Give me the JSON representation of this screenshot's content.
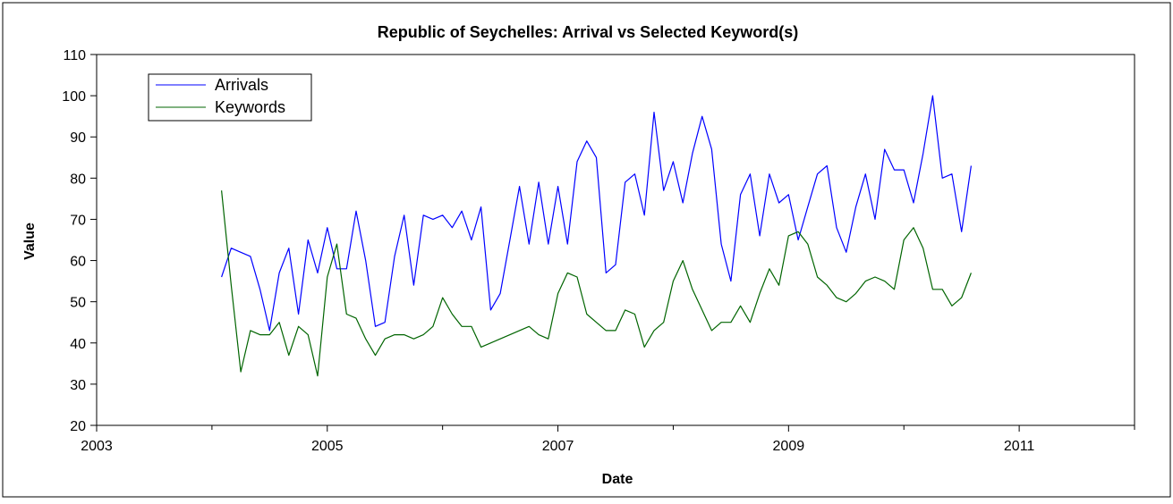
{
  "chart_data": {
    "type": "line",
    "title": "Republic of Seychelles: Arrival vs Selected Keyword(s)",
    "xlabel": "Date",
    "ylabel": "Value",
    "xlim": [
      "2003-01-01",
      "2012-01-01"
    ],
    "ylim": [
      20,
      110
    ],
    "x_ticks": [
      {
        "date": "2003-01-01",
        "label": "2003"
      },
      {
        "date": "2005-01-01",
        "label": "2005"
      },
      {
        "date": "2007-01-01",
        "label": "2007"
      },
      {
        "date": "2009-01-01",
        "label": "2009"
      },
      {
        "date": "2011-01-01",
        "label": "2011"
      }
    ],
    "x_minor_ticks": [
      "2004-01-01",
      "2006-01-01",
      "2008-01-01",
      "2010-01-01",
      "2012-01-01"
    ],
    "y_ticks": [
      20,
      30,
      40,
      50,
      60,
      70,
      80,
      90,
      100,
      110
    ],
    "grid": false,
    "legend_position": "top-left",
    "colors": {
      "arrivals": "#0000ff",
      "keywords": "#006400"
    },
    "x": [
      "2004-02",
      "2004-03",
      "2004-04",
      "2004-05",
      "2004-06",
      "2004-07",
      "2004-08",
      "2004-09",
      "2004-10",
      "2004-11",
      "2004-12",
      "2005-01",
      "2005-02",
      "2005-03",
      "2005-04",
      "2005-05",
      "2005-06",
      "2005-07",
      "2005-08",
      "2005-09",
      "2005-10",
      "2005-11",
      "2005-12",
      "2006-01",
      "2006-02",
      "2006-03",
      "2006-04",
      "2006-05",
      "2006-06",
      "2006-07",
      "2006-08",
      "2006-09",
      "2006-10",
      "2006-11",
      "2006-12",
      "2007-01",
      "2007-02",
      "2007-03",
      "2007-04",
      "2007-05",
      "2007-06",
      "2007-07",
      "2007-08",
      "2007-09",
      "2007-10",
      "2007-11",
      "2007-12",
      "2008-01",
      "2008-02",
      "2008-03",
      "2008-04",
      "2008-05",
      "2008-06",
      "2008-07",
      "2008-08",
      "2008-09",
      "2008-10",
      "2008-11",
      "2008-12",
      "2009-01",
      "2009-02",
      "2009-03",
      "2009-04",
      "2009-05",
      "2009-06",
      "2009-07",
      "2009-08",
      "2009-09",
      "2009-10",
      "2009-11",
      "2009-12",
      "2010-01",
      "2010-02",
      "2010-03",
      "2010-04",
      "2010-05",
      "2010-06",
      "2010-07",
      "2010-08"
    ],
    "series": [
      {
        "name": "Arrivals",
        "values": [
          56,
          63,
          62,
          61,
          53,
          43,
          57,
          63,
          47,
          65,
          57,
          68,
          58,
          58,
          72,
          60,
          44,
          45,
          61,
          71,
          54,
          71,
          70,
          71,
          68,
          72,
          65,
          73,
          48,
          52,
          65,
          78,
          64,
          79,
          64,
          78,
          64,
          84,
          89,
          85,
          57,
          59,
          79,
          81,
          71,
          96,
          77,
          84,
          74,
          86,
          95,
          87,
          64,
          55,
          76,
          81,
          66,
          81,
          74,
          76,
          65,
          73,
          81,
          83,
          68,
          62,
          73,
          81,
          70,
          87,
          82,
          82,
          74,
          86,
          100,
          80,
          81,
          67,
          83
        ]
      },
      {
        "name": "Keywords",
        "values": [
          77,
          54,
          33,
          43,
          42,
          42,
          45,
          37,
          44,
          42,
          32,
          56,
          64,
          47,
          46,
          41,
          37,
          41,
          42,
          42,
          41,
          42,
          44,
          51,
          47,
          44,
          44,
          39,
          40,
          41,
          42,
          43,
          44,
          42,
          41,
          52,
          57,
          56,
          47,
          45,
          43,
          43,
          48,
          47,
          39,
          43,
          45,
          55,
          60,
          53,
          48,
          43,
          45,
          45,
          49,
          45,
          52,
          58,
          54,
          66,
          67,
          64,
          56,
          54,
          51,
          50,
          52,
          55,
          56,
          55,
          53,
          65,
          68,
          63,
          53,
          53,
          49,
          51,
          57
        ]
      }
    ]
  }
}
